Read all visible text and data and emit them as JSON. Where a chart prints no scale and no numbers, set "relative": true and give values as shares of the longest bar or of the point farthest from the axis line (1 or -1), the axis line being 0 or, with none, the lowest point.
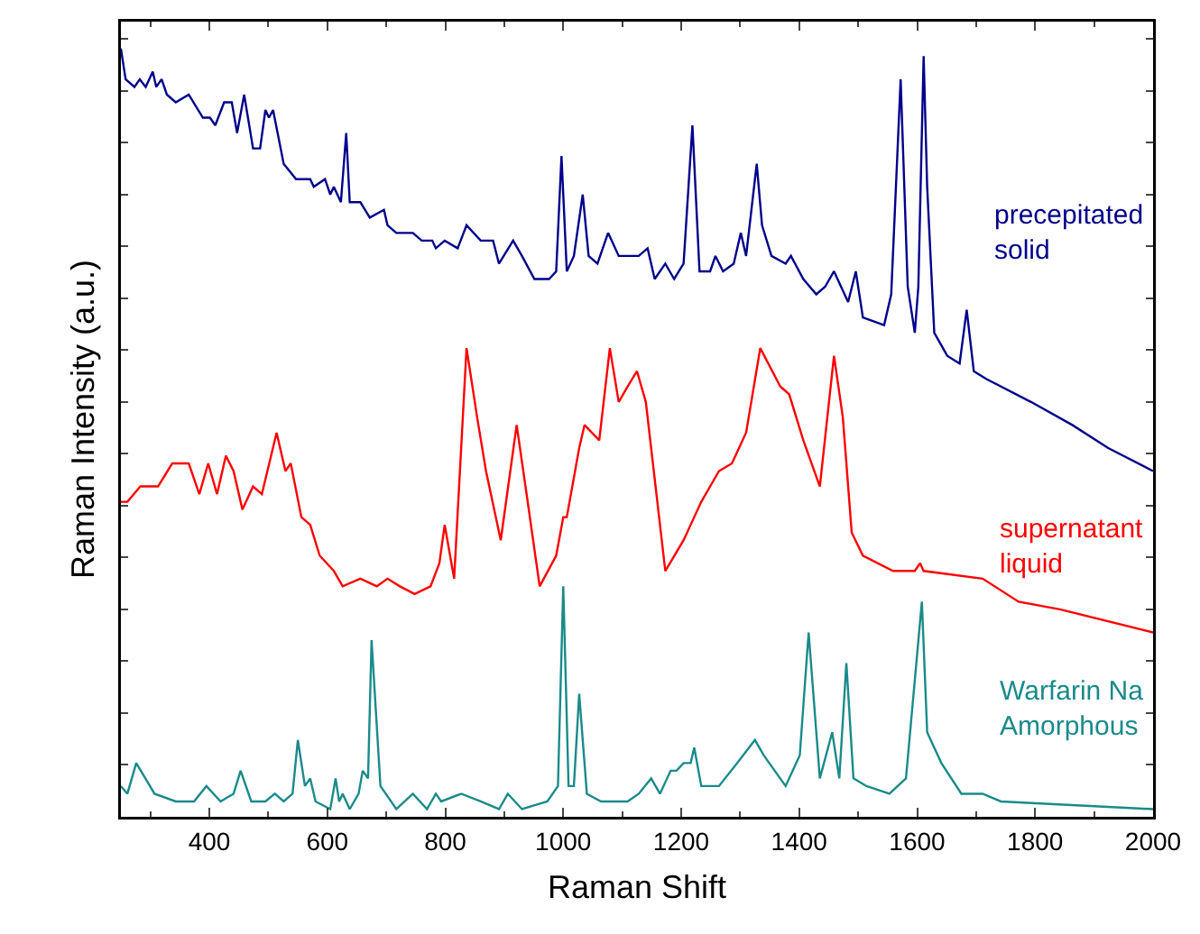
{
  "chart_data": {
    "type": "line",
    "relative": true,
    "xlabel": "Raman Shift",
    "ylabel": "Raman Intensity (a.u.)",
    "xlim": [
      250,
      2000
    ],
    "xticks": [
      400,
      600,
      800,
      1000,
      1200,
      1400,
      1600,
      1800,
      2000
    ],
    "tick_labels": "x",
    "grid": false,
    "legend": false,
    "marker": "none",
    "line_style": "solid",
    "series": [
      {
        "name": "precepitated\nsolid",
        "color": "#00008b",
        "x": [
          250,
          258,
          273,
          282,
          292,
          304,
          310,
          319,
          328,
          343,
          365,
          389,
          401,
          410,
          425,
          438,
          447,
          459,
          474,
          486,
          495,
          501,
          508,
          526,
          547,
          571,
          577,
          596,
          605,
          611,
          623,
          632,
          638,
          656,
          672,
          696,
          702,
          717,
          745,
          760,
          778,
          784,
          799,
          821,
          836,
          860,
          881,
          891,
          915,
          930,
          951,
          976,
          988,
          997,
          1006,
          1018,
          1033,
          1043,
          1058,
          1076,
          1082,
          1094,
          1128,
          1143,
          1155,
          1173,
          1188,
          1204,
          1219,
          1231,
          1249,
          1258,
          1271,
          1289,
          1301,
          1310,
          1328,
          1337,
          1353,
          1377,
          1386,
          1407,
          1429,
          1444,
          1459,
          1483,
          1496,
          1508,
          1544,
          1556,
          1572,
          1584,
          1596,
          1602,
          1611,
          1617,
          1629,
          1651,
          1672,
          1684,
          1696,
          1717,
          1793,
          1863,
          1924,
          2000
        ],
        "values": [
          1.0,
          0.96,
          0.95,
          0.96,
          0.95,
          0.97,
          0.95,
          0.96,
          0.94,
          0.93,
          0.94,
          0.91,
          0.91,
          0.9,
          0.93,
          0.93,
          0.89,
          0.94,
          0.87,
          0.87,
          0.92,
          0.91,
          0.92,
          0.85,
          0.83,
          0.83,
          0.82,
          0.83,
          0.81,
          0.82,
          0.8,
          0.89,
          0.8,
          0.8,
          0.78,
          0.79,
          0.77,
          0.76,
          0.76,
          0.75,
          0.75,
          0.74,
          0.75,
          0.74,
          0.77,
          0.75,
          0.75,
          0.72,
          0.75,
          0.73,
          0.7,
          0.7,
          0.71,
          0.86,
          0.71,
          0.73,
          0.81,
          0.73,
          0.72,
          0.76,
          0.75,
          0.73,
          0.73,
          0.74,
          0.7,
          0.72,
          0.7,
          0.72,
          0.9,
          0.71,
          0.71,
          0.73,
          0.71,
          0.72,
          0.76,
          0.73,
          0.85,
          0.77,
          0.73,
          0.72,
          0.73,
          0.7,
          0.68,
          0.69,
          0.71,
          0.67,
          0.71,
          0.65,
          0.64,
          0.68,
          0.96,
          0.69,
          0.63,
          0.69,
          0.99,
          0.82,
          0.63,
          0.6,
          0.59,
          0.66,
          0.58,
          0.57,
          0.54,
          0.51,
          0.48,
          0.45
        ]
      },
      {
        "name": "supernatant\nliquid",
        "color": "#ff0000",
        "x": [
          250,
          261,
          283,
          298,
          313,
          337,
          365,
          374,
          383,
          398,
          413,
          428,
          441,
          456,
          474,
          489,
          514,
          529,
          538,
          556,
          571,
          587,
          611,
          626,
          656,
          684,
          702,
          723,
          748,
          775,
          790,
          799,
          815,
          836,
          854,
          869,
          894,
          921,
          936,
          960,
          988,
          1000,
          1006,
          1027,
          1036,
          1061,
          1079,
          1094,
          1109,
          1125,
          1140,
          1173,
          1204,
          1234,
          1264,
          1286,
          1310,
          1334,
          1368,
          1383,
          1407,
          1435,
          1459,
          1474,
          1489,
          1508,
          1559,
          1596,
          1605,
          1611,
          1711,
          1772,
          1842,
          2000
        ],
        "values": [
          0.41,
          0.41,
          0.43,
          0.43,
          0.43,
          0.46,
          0.46,
          0.44,
          0.42,
          0.46,
          0.42,
          0.47,
          0.45,
          0.4,
          0.43,
          0.42,
          0.5,
          0.45,
          0.46,
          0.39,
          0.38,
          0.34,
          0.32,
          0.3,
          0.31,
          0.3,
          0.31,
          0.3,
          0.29,
          0.3,
          0.33,
          0.38,
          0.31,
          0.61,
          0.52,
          0.45,
          0.36,
          0.51,
          0.43,
          0.3,
          0.34,
          0.39,
          0.39,
          0.48,
          0.51,
          0.49,
          0.61,
          0.54,
          0.56,
          0.58,
          0.54,
          0.32,
          0.36,
          0.41,
          0.45,
          0.46,
          0.5,
          0.61,
          0.56,
          0.55,
          0.49,
          0.43,
          0.6,
          0.52,
          0.37,
          0.34,
          0.32,
          0.32,
          0.33,
          0.32,
          0.31,
          0.28,
          0.27,
          0.24
        ]
      },
      {
        "name": "Warfarin Na\nAmorphous",
        "color": "#1a8a8a",
        "x": [
          250,
          261,
          276,
          307,
          343,
          374,
          395,
          419,
          441,
          453,
          471,
          495,
          511,
          526,
          541,
          550,
          562,
          571,
          580,
          605,
          614,
          620,
          626,
          638,
          653,
          660,
          669,
          675,
          690,
          717,
          745,
          769,
          784,
          793,
          827,
          860,
          891,
          906,
          930,
          973,
          991,
          1000,
          1009,
          1018,
          1027,
          1040,
          1064,
          1082,
          1094,
          1109,
          1128,
          1149,
          1164,
          1182,
          1192,
          1204,
          1216,
          1222,
          1234,
          1264,
          1295,
          1325,
          1340,
          1377,
          1401,
          1416,
          1435,
          1456,
          1468,
          1480,
          1492,
          1514,
          1553,
          1581,
          1608,
          1617,
          1641,
          1675,
          1711,
          1742,
          2000
        ],
        "values": [
          0.04,
          0.03,
          0.07,
          0.03,
          0.02,
          0.02,
          0.04,
          0.02,
          0.03,
          0.06,
          0.02,
          0.02,
          0.03,
          0.02,
          0.03,
          0.1,
          0.04,
          0.05,
          0.02,
          0.01,
          0.05,
          0.02,
          0.03,
          0.01,
          0.03,
          0.06,
          0.05,
          0.23,
          0.04,
          0.01,
          0.03,
          0.01,
          0.03,
          0.02,
          0.03,
          0.02,
          0.01,
          0.03,
          0.01,
          0.02,
          0.04,
          0.3,
          0.04,
          0.04,
          0.16,
          0.03,
          0.02,
          0.02,
          0.02,
          0.02,
          0.03,
          0.05,
          0.03,
          0.06,
          0.06,
          0.07,
          0.07,
          0.09,
          0.04,
          0.04,
          0.07,
          0.1,
          0.08,
          0.04,
          0.08,
          0.24,
          0.05,
          0.11,
          0.05,
          0.2,
          0.05,
          0.04,
          0.03,
          0.05,
          0.28,
          0.11,
          0.07,
          0.03,
          0.03,
          0.02,
          0.01
        ]
      }
    ]
  }
}
